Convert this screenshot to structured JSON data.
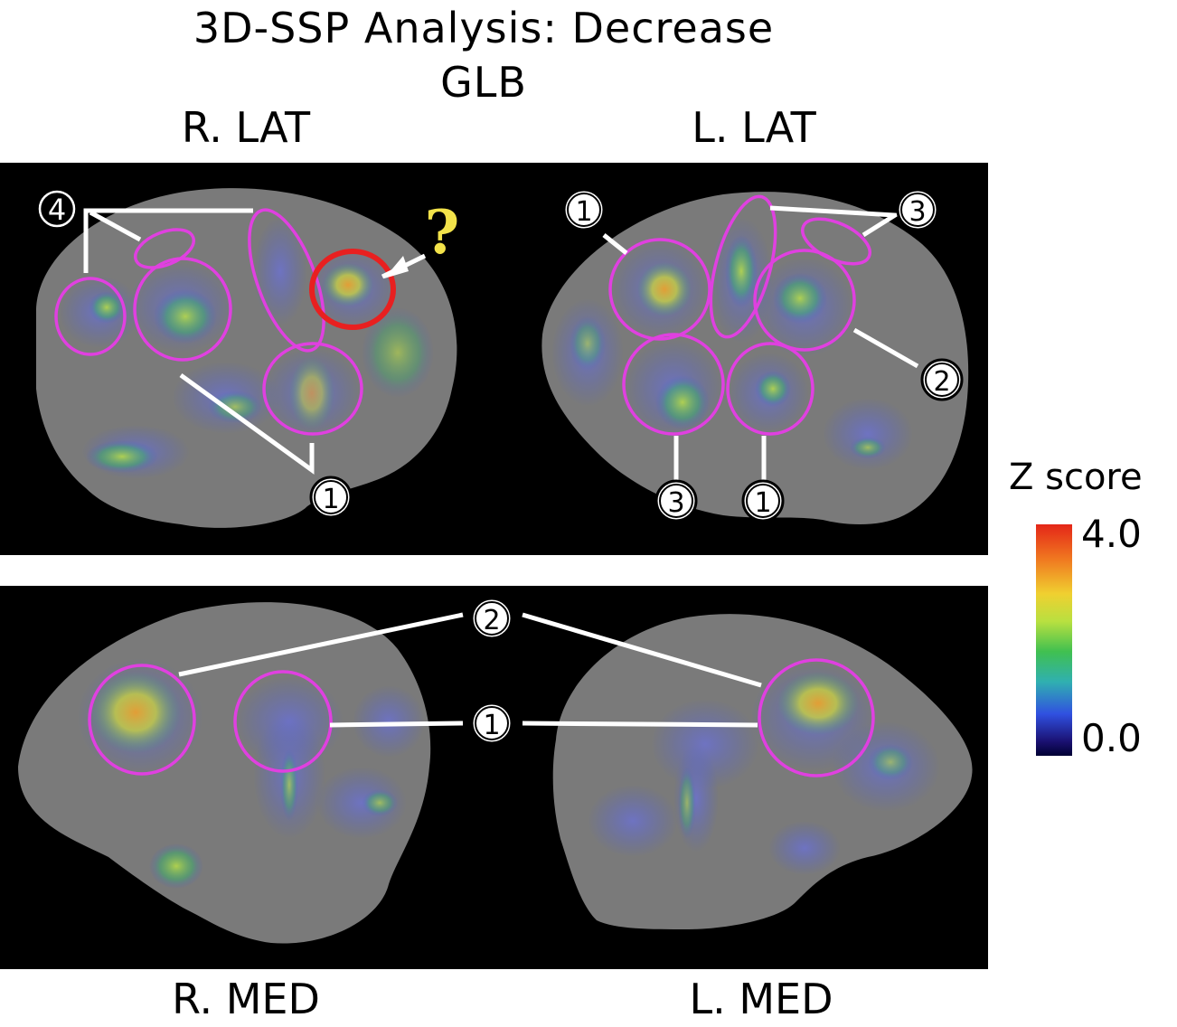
{
  "header": {
    "title_line1": "3D-SSP Analysis: Decrease",
    "title_line2": "GLB"
  },
  "views": {
    "r_lat": "R. LAT",
    "l_lat": "L. LAT",
    "r_med": "R. MED",
    "l_med": "L. MED"
  },
  "annotations": {
    "r_lat": {
      "n4": "4",
      "n1": "1",
      "question": "?"
    },
    "l_lat": {
      "n1": "1",
      "n3_top": "3",
      "n2": "2",
      "n3_bottom": "3",
      "n1_bottom": "1"
    },
    "med": {
      "n2": "2",
      "n1": "1"
    }
  },
  "colorbar": {
    "title": "Z score",
    "max_label": "4.0",
    "min_label": "0.0",
    "min": 0.0,
    "max": 4.0
  },
  "colors": {
    "roi_outline": "#e040e0",
    "highlight_circle": "#e82020",
    "question_mark": "#f2e24a",
    "background_panel": "#000000",
    "brain": "#7d7d7d"
  }
}
